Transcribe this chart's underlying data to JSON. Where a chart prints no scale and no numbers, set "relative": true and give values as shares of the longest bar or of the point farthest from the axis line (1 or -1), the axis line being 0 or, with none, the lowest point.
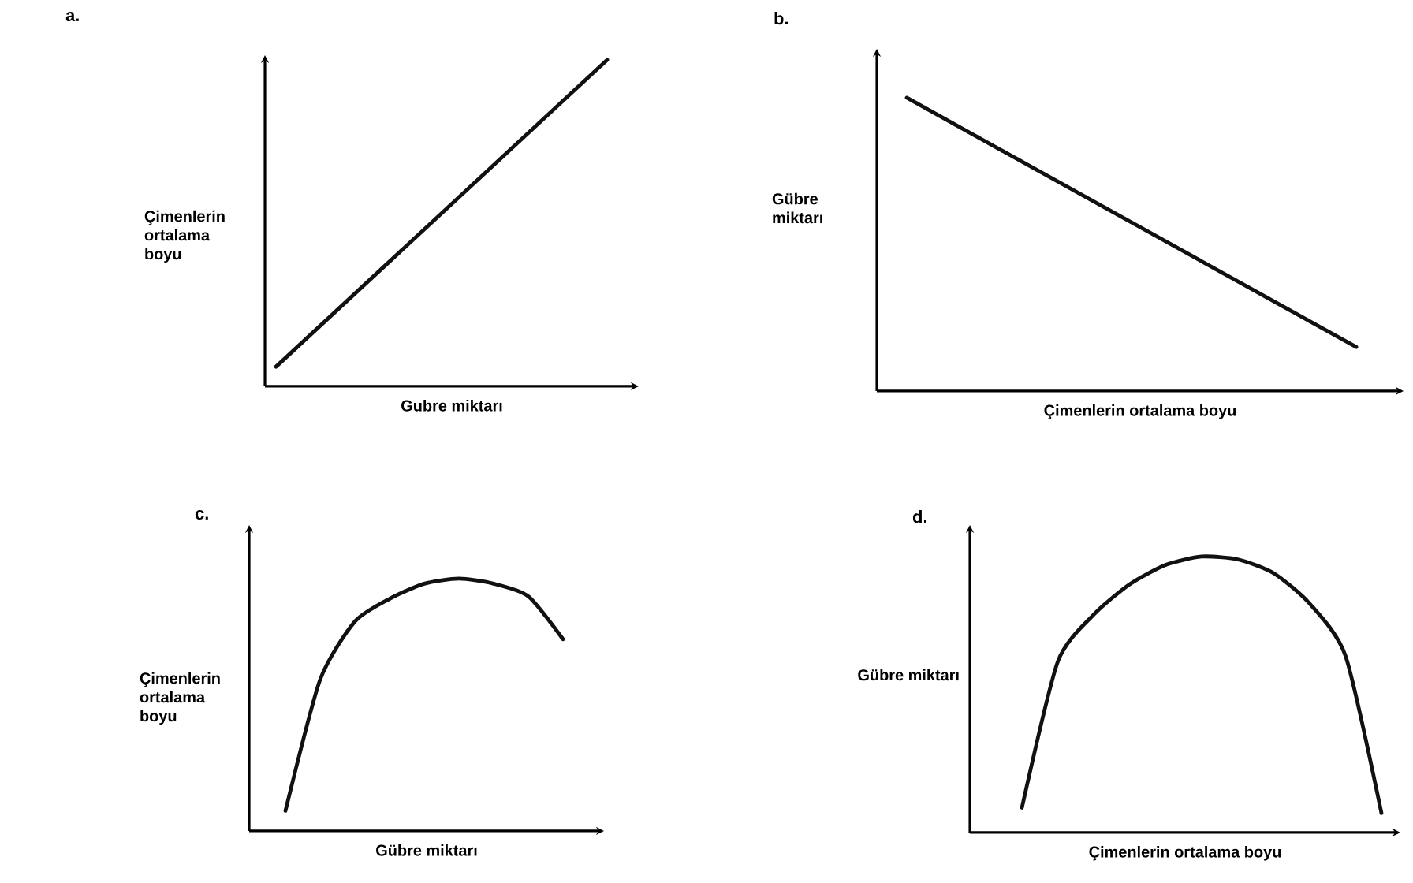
{
  "chart_data": [
    {
      "type": "line",
      "title": "a.",
      "xlabel": "Gubre miktarı",
      "ylabel": "Çimenlerin ortalama boyu",
      "relative": true,
      "color": "#111111",
      "categories": [
        null,
        null
      ],
      "values": [
        0.06,
        1
      ]
    },
    {
      "type": "line",
      "title": "b.",
      "xlabel": "Çimenlerin ortalama boyu",
      "ylabel": "Gübre miktarı",
      "relative": true,
      "color": "#111111",
      "categories": [
        null,
        null
      ],
      "values": [
        1,
        0.15
      ]
    },
    {
      "type": "line",
      "title": "c.",
      "xlabel": "Gübre miktarı",
      "ylabel": "Çimenlerin ortalama boyu",
      "relative": true,
      "color": "#111111",
      "categories": [
        null,
        null,
        null,
        null,
        null,
        null,
        null,
        null,
        null
      ],
      "values": [
        0.08,
        0.6,
        0.83,
        0.92,
        0.98,
        1,
        0.98,
        0.93,
        0.76
      ]
    },
    {
      "type": "line",
      "title": "d.",
      "xlabel": "Çimenlerin ortalama boyu",
      "ylabel": "Gübre miktarı",
      "relative": true,
      "color": "#111111",
      "categories": [
        null,
        null,
        null,
        null,
        null,
        null,
        null,
        null,
        null,
        null,
        null
      ],
      "values": [
        0.09,
        0.62,
        0.79,
        0.9,
        0.97,
        1,
        0.99,
        0.94,
        0.83,
        0.64,
        0.07
      ]
    }
  ]
}
